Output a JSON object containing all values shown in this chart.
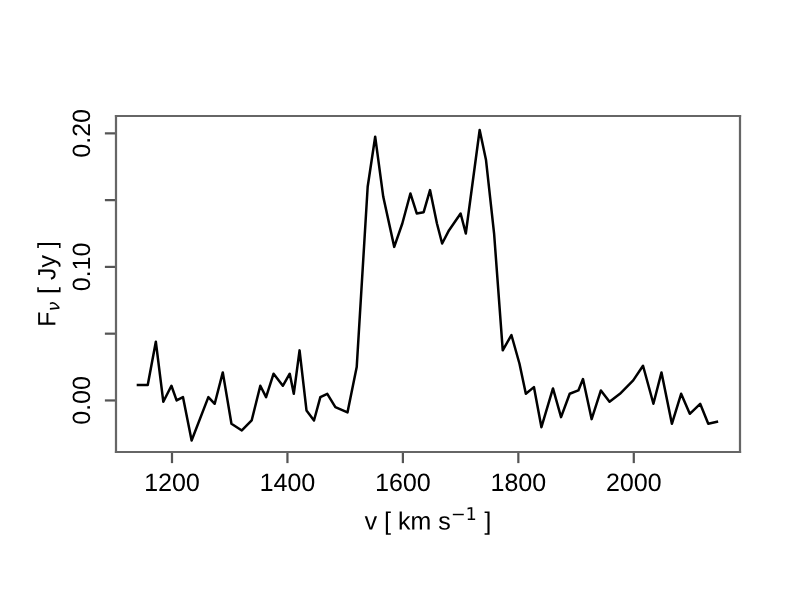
{
  "chart_data": {
    "type": "line",
    "xlabel": "v [ km s$^{−1}$ ]",
    "ylabel": "F$_{ν}$ [ Jy ]",
    "xlim": [
      1103,
      2184
    ],
    "ylim": [
      -0.0386,
      0.213
    ],
    "xticks": [
      1200,
      1400,
      1600,
      1800,
      2000
    ],
    "yticks": [
      {
        "value": 0,
        "label": "0.00"
      },
      {
        "value": 0.05,
        "label": null
      },
      {
        "value": 0.1,
        "label": "0.10"
      },
      {
        "value": 0.15,
        "label": null
      },
      {
        "value": 0.2,
        "label": "0.20"
      }
    ],
    "grid": false,
    "marker": "none",
    "line_style": "solid",
    "series": [
      {
        "color": "#000000",
        "x": [
          1141,
          1158,
          1172,
          1185,
          1199,
          1208,
          1219,
          1234,
          1263,
          1274,
          1288,
          1303,
          1321,
          1338,
          1353,
          1363,
          1376,
          1392,
          1404,
          1411,
          1421,
          1433,
          1446,
          1457,
          1469,
          1483,
          1504,
          1520,
          1539,
          1552,
          1566,
          1585,
          1599,
          1613,
          1624,
          1636,
          1647,
          1659,
          1668,
          1680,
          1700,
          1709,
          1733,
          1744,
          1758,
          1773,
          1788,
          1802,
          1813,
          1827,
          1840,
          1860,
          1874,
          1889,
          1904,
          1912,
          1927,
          1943,
          1958,
          1976,
          1999,
          2016,
          2034,
          2048,
          2066,
          2082,
          2097,
          2115,
          2129,
          2144
        ],
        "values": [
          0.0115,
          0.0115,
          0.044,
          -0.001,
          0.011,
          0.0,
          0.0025,
          -0.03,
          0.0025,
          -0.0025,
          0.021,
          -0.0175,
          -0.0225,
          -0.015,
          0.011,
          0.0025,
          0.02,
          0.011,
          0.02,
          0.005,
          0.0375,
          -0.0075,
          -0.015,
          0.0025,
          0.005,
          -0.005,
          -0.009,
          0.025,
          0.16,
          0.1975,
          0.1525,
          0.115,
          0.1325,
          0.155,
          0.14,
          0.141,
          0.1575,
          0.1325,
          0.1175,
          0.1275,
          0.14,
          0.125,
          0.2025,
          0.18,
          0.125,
          0.0375,
          0.049,
          0.0275,
          0.005,
          0.01,
          -0.02,
          0.009,
          -0.0125,
          0.005,
          0.0075,
          0.016,
          -0.014,
          0.0075,
          -0.001,
          0.005,
          0.015,
          0.026,
          -0.0025,
          0.021,
          -0.0175,
          0.005,
          -0.01,
          -0.0025,
          -0.0175,
          -0.016
        ]
      }
    ]
  }
}
